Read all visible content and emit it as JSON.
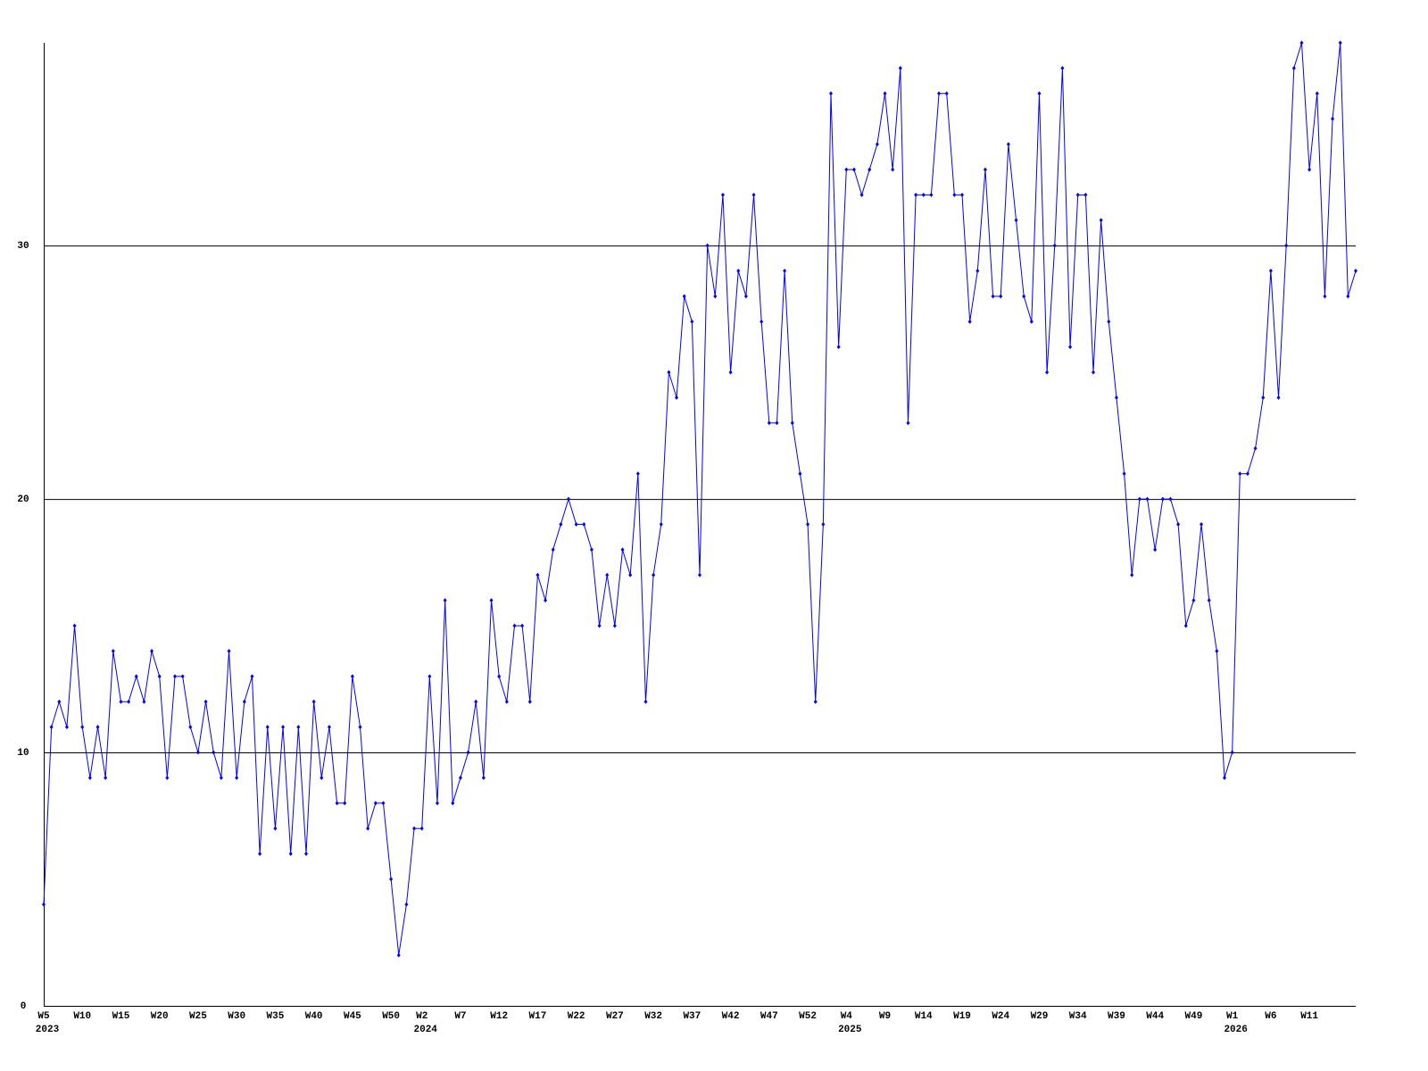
{
  "chart_data": {
    "type": "line",
    "categories": [
      "W5",
      null,
      null,
      null,
      null,
      "W10",
      null,
      null,
      null,
      null,
      "W15",
      null,
      null,
      null,
      null,
      "W20",
      null,
      null,
      null,
      null,
      "W25",
      null,
      null,
      null,
      null,
      "W30",
      null,
      null,
      null,
      null,
      "W35",
      null,
      null,
      null,
      null,
      "W40",
      null,
      null,
      null,
      null,
      "W45",
      null,
      null,
      null,
      null,
      "W50",
      null,
      null,
      null,
      "W2",
      null,
      null,
      null,
      null,
      "W7",
      null,
      null,
      null,
      null,
      "W12",
      null,
      null,
      null,
      null,
      "W17",
      null,
      null,
      null,
      null,
      "W22",
      null,
      null,
      null,
      null,
      "W27",
      null,
      null,
      null,
      null,
      "W32",
      null,
      null,
      null,
      null,
      "W37",
      null,
      null,
      null,
      null,
      "W42",
      null,
      null,
      null,
      null,
      "W47",
      null,
      null,
      null,
      null,
      "W52",
      null,
      null,
      null,
      null,
      "W4",
      null,
      null,
      null,
      null,
      "W9",
      null,
      null,
      null,
      null,
      "W14",
      null,
      null,
      null,
      null,
      "W19",
      null,
      null,
      null,
      null,
      "W24",
      null,
      null,
      null,
      null,
      "W29",
      null,
      null,
      null,
      null,
      "W34",
      null,
      null,
      null,
      null,
      "W39",
      null,
      null,
      null,
      null,
      "W44",
      null,
      null,
      null,
      null,
      "W49",
      null,
      null,
      null,
      null,
      "W1",
      null,
      null,
      null,
      null,
      "W6",
      null,
      null,
      null,
      null,
      "W11",
      null,
      null,
      null,
      null,
      null,
      null
    ],
    "years": [
      "2023",
      "2024",
      "2025",
      "2026"
    ],
    "values": [
      4,
      11,
      12,
      11,
      15,
      11,
      9,
      11,
      9,
      14,
      12,
      12,
      13,
      12,
      14,
      13,
      9,
      13,
      13,
      11,
      10,
      12,
      10,
      9,
      14,
      9,
      12,
      13,
      6,
      11,
      7,
      11,
      6,
      11,
      6,
      12,
      9,
      11,
      8,
      8,
      13,
      11,
      7,
      8,
      8,
      5,
      2,
      4,
      7,
      7,
      13,
      8,
      16,
      8,
      9,
      10,
      12,
      9,
      16,
      13,
      12,
      15,
      15,
      12,
      17,
      16,
      18,
      19,
      20,
      19,
      19,
      18,
      15,
      17,
      15,
      18,
      17,
      21,
      12,
      17,
      19,
      25,
      24,
      28,
      27,
      17,
      30,
      28,
      32,
      25,
      29,
      28,
      32,
      27,
      23,
      23,
      29,
      23,
      21,
      19,
      12,
      19,
      36,
      26,
      33,
      33,
      32,
      33,
      34,
      36,
      33,
      37,
      23,
      32,
      32,
      32,
      36,
      36,
      32,
      32,
      27,
      29,
      33,
      28,
      28,
      34,
      31,
      28,
      27,
      36,
      25,
      30,
      37,
      26,
      32,
      32,
      25,
      31,
      27,
      24,
      21,
      17,
      20,
      20,
      18,
      20,
      20,
      19,
      15,
      16,
      19,
      16,
      14,
      9,
      10,
      21,
      21,
      22,
      24,
      29,
      24,
      30,
      37,
      38,
      33,
      36,
      28,
      35,
      38,
      28,
      29
    ],
    "color": "#0000ff",
    "ylim": [
      0,
      38
    ],
    "yticks": [
      0,
      10,
      20,
      30
    ],
    "grid": true
  }
}
